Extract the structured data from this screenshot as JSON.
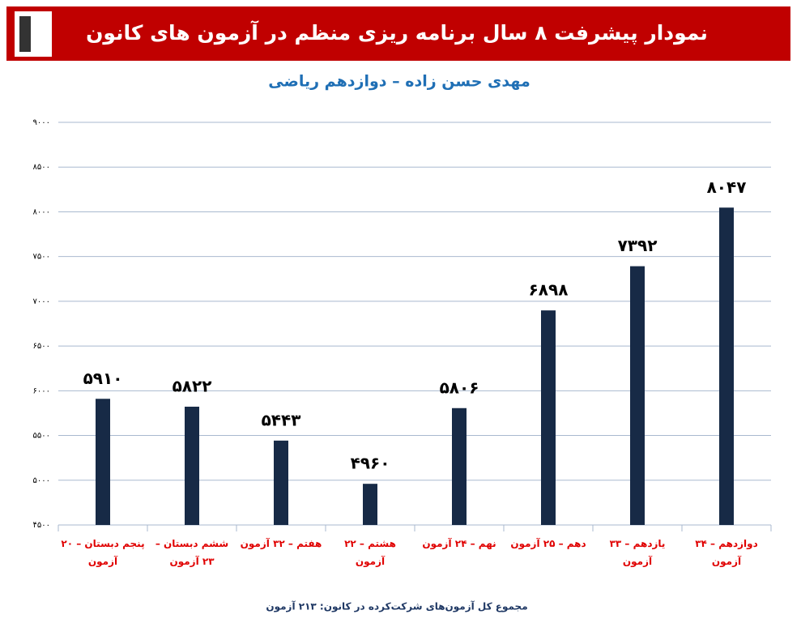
{
  "chart_data": {
    "type": "bar",
    "title": "نمودار پیشرفت ۸ سال برنامه ریزی منظم در آزمون های کانون",
    "subtitle": "مهدی حسن زاده – دوازدهم ریاضی",
    "annotation": "مجموع کل آزمون‌های شرکت‌کرده در کانون:  ۲۱۳ آزمون",
    "categories": [
      "پنجم دبستان – ۲۰ آزمون",
      "ششم دبستان – ۲۳ آزمون",
      "هفتم – ۳۲ آزمون",
      "هشتم – ۲۲ آزمون",
      "نهم – ۲۴ آزمون",
      "دهم – ۲۵ آزمون",
      "یازدهم – ۳۳ آزمون",
      "دوازدهم – ۳۴ آزمون"
    ],
    "values": [
      5910,
      5822,
      5443,
      4960,
      5806,
      6898,
      7392,
      8047
    ],
    "value_labels": [
      "۵۹۱۰",
      "۵۸۲۲",
      "۵۴۴۳",
      "۴۹۶۰",
      "۵۸۰۶",
      "۶۸۹۸",
      "۷۳۹۲",
      "۸۰۴۷"
    ],
    "color": "#172a46",
    "ylim": [
      4500,
      9000
    ],
    "yticks": [
      {
        "value": 4500,
        "label": "۴۵۰۰"
      },
      {
        "value": 5000,
        "label": "۵۰۰۰"
      },
      {
        "value": 5500,
        "label": "۵۵۰۰"
      },
      {
        "value": 6000,
        "label": "۶۰۰۰"
      },
      {
        "value": 6500,
        "label": "۶۵۰۰"
      },
      {
        "value": 7000,
        "label": "۷۰۰۰"
      },
      {
        "value": 7500,
        "label": "۷۵۰۰"
      },
      {
        "value": 8000,
        "label": "۸۰۰۰"
      },
      {
        "value": 8500,
        "label": "۸۵۰۰"
      },
      {
        "value": 9000,
        "label": "۹۰۰۰"
      }
    ],
    "grid": true
  }
}
